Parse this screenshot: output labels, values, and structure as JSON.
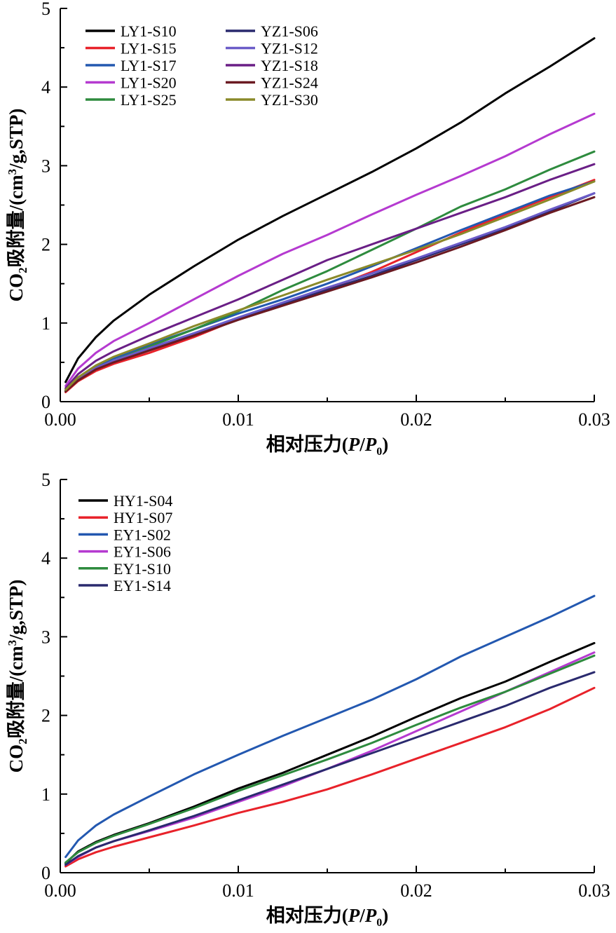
{
  "chart_data": [
    {
      "type": "line",
      "xlabel": "相对压力(P/P0)",
      "ylabel": "CO2吸附量/(cm3/g,STP)",
      "xlim": [
        0,
        0.03
      ],
      "ylim": [
        0,
        5
      ],
      "xticks": [
        "0.00",
        "0.01",
        "0.02",
        "0.03"
      ],
      "yticks": [
        "0",
        "1",
        "2",
        "3",
        "4",
        "5"
      ],
      "legend_position": "top-left",
      "grid": false,
      "series": [
        {
          "name": "LY1-S10",
          "color": "#000000",
          "x": [
            0.0003,
            0.001,
            0.002,
            0.003,
            0.005,
            0.0075,
            0.01,
            0.0125,
            0.015,
            0.0175,
            0.02,
            0.0225,
            0.025,
            0.0275,
            0.03
          ],
          "values": [
            0.25,
            0.55,
            0.82,
            1.03,
            1.36,
            1.72,
            2.06,
            2.36,
            2.64,
            2.92,
            3.22,
            3.55,
            3.92,
            4.26,
            4.62
          ]
        },
        {
          "name": "LY1-S15",
          "color": "#e8222a",
          "x": [
            0.0003,
            0.001,
            0.002,
            0.003,
            0.005,
            0.0075,
            0.01,
            0.0125,
            0.015,
            0.0175,
            0.02,
            0.0225,
            0.025,
            0.0275,
            0.03
          ],
          "values": [
            0.12,
            0.26,
            0.39,
            0.48,
            0.62,
            0.82,
            1.05,
            1.25,
            1.43,
            1.65,
            1.9,
            2.15,
            2.38,
            2.6,
            2.82
          ]
        },
        {
          "name": "LY1-S17",
          "color": "#2358b0",
          "x": [
            0.0003,
            0.001,
            0.002,
            0.003,
            0.005,
            0.0075,
            0.01,
            0.0125,
            0.015,
            0.0175,
            0.02,
            0.0225,
            0.025,
            0.0275,
            0.03
          ],
          "values": [
            0.15,
            0.3,
            0.45,
            0.55,
            0.72,
            0.92,
            1.12,
            1.3,
            1.5,
            1.72,
            1.95,
            2.18,
            2.4,
            2.62,
            2.8
          ]
        },
        {
          "name": "LY1-S20",
          "color": "#b53ad0",
          "x": [
            0.0003,
            0.001,
            0.002,
            0.003,
            0.005,
            0.0075,
            0.01,
            0.0125,
            0.015,
            0.0175,
            0.02,
            0.0225,
            0.025,
            0.0275,
            0.03
          ],
          "values": [
            0.2,
            0.42,
            0.62,
            0.77,
            1.0,
            1.3,
            1.6,
            1.88,
            2.12,
            2.38,
            2.63,
            2.87,
            3.12,
            3.4,
            3.66
          ]
        },
        {
          "name": "LY1-S25",
          "color": "#2e8b3e",
          "x": [
            0.0003,
            0.001,
            0.002,
            0.003,
            0.005,
            0.0075,
            0.01,
            0.0125,
            0.015,
            0.0175,
            0.02,
            0.0225,
            0.025,
            0.0275,
            0.03
          ],
          "values": [
            0.13,
            0.28,
            0.42,
            0.52,
            0.7,
            0.92,
            1.15,
            1.42,
            1.66,
            1.93,
            2.2,
            2.48,
            2.7,
            2.95,
            3.18
          ]
        },
        {
          "name": "YZ1-S06",
          "color": "#2a2a6e",
          "x": [
            0.0003,
            0.001,
            0.002,
            0.003,
            0.005,
            0.0075,
            0.01,
            0.0125,
            0.015,
            0.0175,
            0.02,
            0.0225,
            0.025,
            0.0275,
            0.03
          ],
          "values": [
            0.14,
            0.28,
            0.42,
            0.51,
            0.66,
            0.85,
            1.05,
            1.24,
            1.42,
            1.6,
            1.8,
            2.0,
            2.2,
            2.42,
            2.65
          ]
        },
        {
          "name": "YZ1-S12",
          "color": "#6b5cc8",
          "x": [
            0.0003,
            0.001,
            0.002,
            0.003,
            0.005,
            0.0075,
            0.01,
            0.0125,
            0.015,
            0.0175,
            0.02,
            0.0225,
            0.025,
            0.0275,
            0.03
          ],
          "values": [
            0.14,
            0.29,
            0.43,
            0.52,
            0.68,
            0.87,
            1.07,
            1.26,
            1.45,
            1.63,
            1.82,
            2.02,
            2.22,
            2.44,
            2.65
          ]
        },
        {
          "name": "YZ1-S18",
          "color": "#6a1f86",
          "x": [
            0.0003,
            0.001,
            0.002,
            0.003,
            0.005,
            0.0075,
            0.01,
            0.0125,
            0.015,
            0.0175,
            0.02,
            0.0225,
            0.025,
            0.0275,
            0.03
          ],
          "values": [
            0.17,
            0.35,
            0.52,
            0.64,
            0.84,
            1.07,
            1.3,
            1.55,
            1.8,
            2.0,
            2.2,
            2.4,
            2.6,
            2.82,
            3.02
          ]
        },
        {
          "name": "YZ1-S24",
          "color": "#6b1a22",
          "x": [
            0.0003,
            0.001,
            0.002,
            0.003,
            0.005,
            0.0075,
            0.01,
            0.0125,
            0.015,
            0.0175,
            0.02,
            0.0225,
            0.025,
            0.0275,
            0.03
          ],
          "values": [
            0.13,
            0.27,
            0.41,
            0.5,
            0.65,
            0.84,
            1.04,
            1.22,
            1.4,
            1.58,
            1.77,
            1.97,
            2.18,
            2.4,
            2.6
          ]
        },
        {
          "name": "YZ1-S30",
          "color": "#8a8a2a",
          "x": [
            0.0003,
            0.001,
            0.002,
            0.003,
            0.005,
            0.0075,
            0.01,
            0.0125,
            0.015,
            0.0175,
            0.02,
            0.0225,
            0.025,
            0.0275,
            0.03
          ],
          "values": [
            0.15,
            0.31,
            0.46,
            0.57,
            0.74,
            0.96,
            1.16,
            1.35,
            1.55,
            1.74,
            1.93,
            2.13,
            2.35,
            2.57,
            2.8
          ]
        }
      ]
    },
    {
      "type": "line",
      "xlabel": "相对压力(P/P0)",
      "ylabel": "CO2吸附量/(cm3/g,STP)",
      "xlim": [
        0,
        0.03
      ],
      "ylim": [
        0,
        5
      ],
      "xticks": [
        "0.00",
        "0.01",
        "0.02",
        "0.03"
      ],
      "yticks": [
        "0",
        "1",
        "2",
        "3",
        "4",
        "5"
      ],
      "legend_position": "top-left",
      "grid": false,
      "series": [
        {
          "name": "HY1-S04",
          "color": "#000000",
          "x": [
            0.0003,
            0.001,
            0.002,
            0.003,
            0.005,
            0.0075,
            0.01,
            0.0125,
            0.015,
            0.0175,
            0.02,
            0.0225,
            0.025,
            0.0275,
            0.03
          ],
          "values": [
            0.12,
            0.27,
            0.39,
            0.48,
            0.63,
            0.84,
            1.07,
            1.27,
            1.5,
            1.73,
            1.98,
            2.22,
            2.43,
            2.68,
            2.92
          ]
        },
        {
          "name": "HY1-S07",
          "color": "#e8222a",
          "x": [
            0.0003,
            0.001,
            0.002,
            0.003,
            0.005,
            0.0075,
            0.01,
            0.0125,
            0.015,
            0.0175,
            0.02,
            0.0225,
            0.025,
            0.0275,
            0.03
          ],
          "values": [
            0.08,
            0.17,
            0.26,
            0.33,
            0.45,
            0.6,
            0.76,
            0.9,
            1.06,
            1.25,
            1.45,
            1.65,
            1.85,
            2.08,
            2.35
          ]
        },
        {
          "name": "EY1-S02",
          "color": "#2358b0",
          "x": [
            0.0003,
            0.001,
            0.002,
            0.003,
            0.005,
            0.0075,
            0.01,
            0.0125,
            0.015,
            0.0175,
            0.02,
            0.0225,
            0.025,
            0.0275,
            0.03
          ],
          "values": [
            0.2,
            0.41,
            0.6,
            0.74,
            0.97,
            1.25,
            1.5,
            1.74,
            1.97,
            2.2,
            2.46,
            2.75,
            3.0,
            3.25,
            3.52
          ]
        },
        {
          "name": "EY1-S06",
          "color": "#b53ad0",
          "x": [
            0.0003,
            0.001,
            0.002,
            0.003,
            0.005,
            0.0075,
            0.01,
            0.0125,
            0.015,
            0.0175,
            0.02,
            0.0225,
            0.025,
            0.0275,
            0.03
          ],
          "values": [
            0.1,
            0.2,
            0.32,
            0.4,
            0.53,
            0.7,
            0.9,
            1.1,
            1.32,
            1.55,
            1.8,
            2.05,
            2.3,
            2.55,
            2.8
          ]
        },
        {
          "name": "EY1-S10",
          "color": "#2e8b3e",
          "x": [
            0.0003,
            0.001,
            0.002,
            0.003,
            0.005,
            0.0075,
            0.01,
            0.0125,
            0.015,
            0.0175,
            0.02,
            0.0225,
            0.025,
            0.0275,
            0.03
          ],
          "values": [
            0.13,
            0.26,
            0.38,
            0.47,
            0.62,
            0.82,
            1.04,
            1.24,
            1.44,
            1.65,
            1.88,
            2.1,
            2.3,
            2.53,
            2.76
          ]
        },
        {
          "name": "EY1-S14",
          "color": "#2a2a6e",
          "x": [
            0.0003,
            0.001,
            0.002,
            0.003,
            0.005,
            0.0075,
            0.01,
            0.0125,
            0.015,
            0.0175,
            0.02,
            0.0225,
            0.025,
            0.0275,
            0.03
          ],
          "values": [
            0.1,
            0.21,
            0.32,
            0.4,
            0.54,
            0.72,
            0.92,
            1.12,
            1.32,
            1.52,
            1.72,
            1.92,
            2.12,
            2.35,
            2.55
          ]
        }
      ]
    }
  ]
}
